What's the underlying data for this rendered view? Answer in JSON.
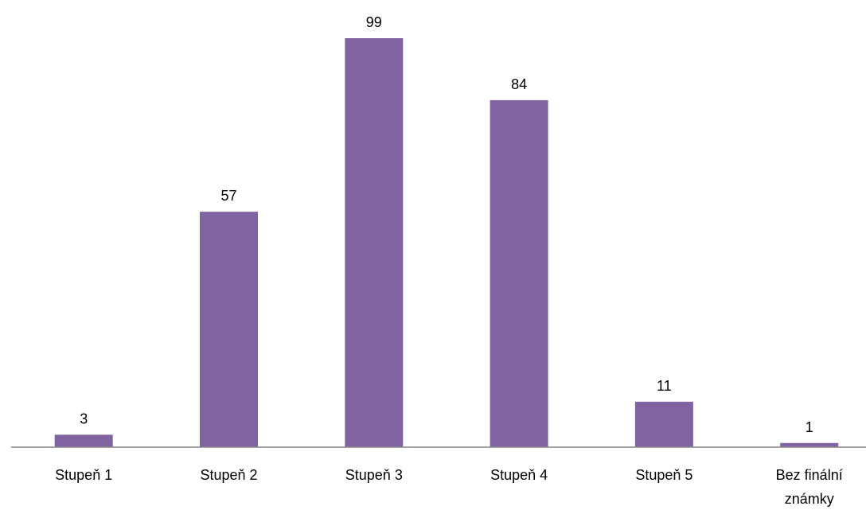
{
  "chart_data": {
    "type": "bar",
    "categories": [
      "Stupeň 1",
      "Stupeň 2",
      "Stupeň 3",
      "Stupeň 4",
      "Stupeň 5",
      "Bez finální známky"
    ],
    "category_lines": [
      [
        "Stupeň 1"
      ],
      [
        "Stupeň 2"
      ],
      [
        "Stupeň 3"
      ],
      [
        "Stupeň 4"
      ],
      [
        "Stupeň 5"
      ],
      [
        "Bez finální",
        "známky"
      ]
    ],
    "values": [
      3,
      57,
      99,
      84,
      11,
      1
    ],
    "data_labels": [
      "3",
      "57",
      "99",
      "84",
      "11",
      "1"
    ],
    "ylim": [
      0,
      99
    ],
    "grid": false,
    "legend": "none",
    "bar_color": "#8064A2",
    "axis_color": "#868686"
  }
}
